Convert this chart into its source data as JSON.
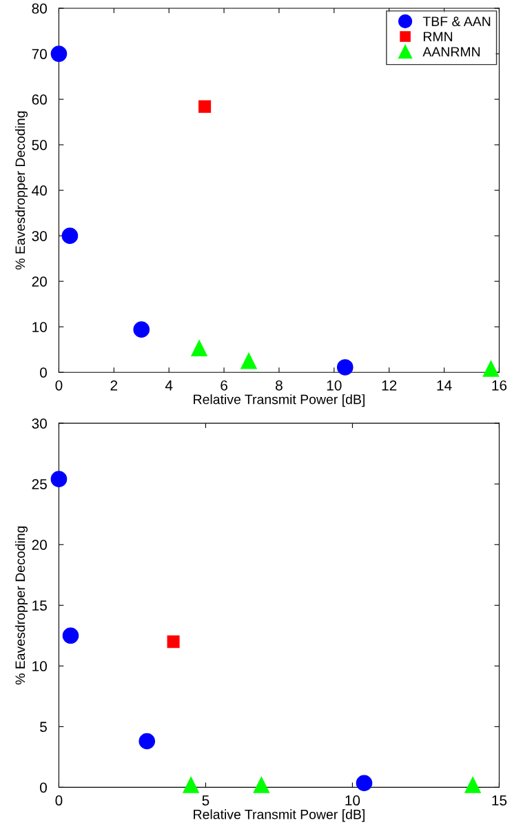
{
  "chart_data": [
    {
      "type": "scatter",
      "xlabel": "Relative Transmit Power [dB]",
      "ylabel": "% Eavesdropper Decoding",
      "xlim": [
        0,
        16
      ],
      "xticks": [
        0,
        2,
        4,
        6,
        8,
        10,
        12,
        14,
        16
      ],
      "ylim": [
        0,
        80
      ],
      "yticks": [
        0,
        10,
        20,
        30,
        40,
        50,
        60,
        70,
        80
      ],
      "grid": false,
      "legend": "top right",
      "series": [
        {
          "name": "TBF & AAN",
          "color": "#0000ff",
          "marker": "circle",
          "x": [
            0,
            0.4,
            3.0,
            10.4
          ],
          "values": [
            70,
            30,
            9.4,
            1.1
          ]
        },
        {
          "name": "RMN",
          "color": "#ff0000",
          "marker": "square",
          "x": [
            5.3
          ],
          "values": [
            58.4
          ]
        },
        {
          "name": "AANRMN",
          "color": "#00ff00",
          "marker": "triangle",
          "x": [
            5.1,
            6.9,
            15.7
          ],
          "values": [
            5.3,
            2.5,
            0.8
          ]
        }
      ]
    },
    {
      "type": "scatter",
      "xlabel": "Relative Transmit Power [dB]",
      "ylabel": "% Eavesdropper Decoding",
      "xlim": [
        0,
        15
      ],
      "xticks": [
        0,
        5,
        10,
        15
      ],
      "ylim": [
        0,
        30
      ],
      "yticks": [
        0,
        5,
        10,
        15,
        20,
        25,
        30
      ],
      "grid": false,
      "legend": false,
      "series": [
        {
          "color": "#0000ff",
          "marker": "circle",
          "x": [
            0,
            0.4,
            3.0,
            10.4
          ],
          "values": [
            25.4,
            12.5,
            3.8,
            0.35
          ]
        },
        {
          "color": "#ff0000",
          "marker": "square",
          "x": [
            3.9
          ],
          "values": [
            12.0
          ]
        },
        {
          "color": "#00ff00",
          "marker": "triangle",
          "x": [
            4.5,
            6.9,
            14.1
          ],
          "values": [
            0.2,
            0.2,
            0.2
          ]
        }
      ]
    }
  ]
}
